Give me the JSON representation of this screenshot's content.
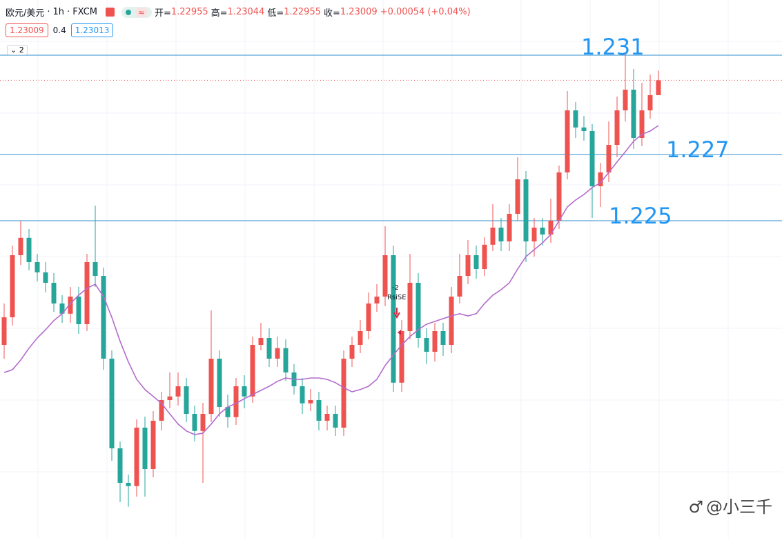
{
  "header": {
    "symbol": "欧元/美元",
    "interval": "1h",
    "source": "FXCM",
    "ohlc": [
      {
        "label": "开=",
        "value": "1.22955"
      },
      {
        "label": "高=",
        "value": "1.23044"
      },
      {
        "label": "低=",
        "value": "1.22955"
      },
      {
        "label": "收=",
        "value": "1.23009"
      }
    ],
    "change": "+0.00054",
    "change_pct": "(+0.04%)",
    "bid": "1.23009",
    "spread": "0.4",
    "ask": "1.23013",
    "collapse": "2"
  },
  "chart_data": {
    "type": "candlestick",
    "ylim": [
      1.2135,
      1.233
    ],
    "up_color": "#ef5350",
    "down_color": "#26a69a",
    "ma_color": "#b36bcc",
    "level_color": "#2e8fcf",
    "open": [
      1.2205,
      1.2215,
      1.22375,
      1.22438,
      1.2235,
      1.22313,
      1.22275,
      1.222,
      1.22163,
      1.22225,
      1.22125,
      1.2235,
      1.223,
      1.22,
      1.21675,
      1.2155,
      1.21538,
      1.2175,
      1.216,
      1.21775,
      1.2185,
      1.21863,
      1.219,
      1.218,
      1.21738,
      1.218,
      1.22,
      1.21825,
      1.21788,
      1.219,
      1.21863,
      1.2205,
      1.22075,
      1.22,
      1.22038,
      1.2195,
      1.219,
      1.21838,
      1.2185,
      1.21775,
      1.218,
      1.2175,
      1.22,
      1.2205,
      1.221,
      1.222,
      1.22225,
      1.22375,
      1.21913,
      1.221,
      1.22275,
      1.22075,
      1.22025,
      1.221,
      1.2205,
      1.22225,
      1.223,
      1.22375,
      1.22325,
      1.22413,
      1.22475,
      1.22425,
      1.22525,
      1.2265,
      1.22425,
      1.22475,
      1.2245,
      1.225,
      1.22675,
      1.229,
      1.22838,
      1.22825,
      1.22625,
      1.22675,
      1.22775,
      1.229,
      1.22975,
      1.228,
      1.229,
      1.22955
    ],
    "high": [
      1.222,
      1.2241,
      1.225,
      1.2247,
      1.2238,
      1.2235,
      1.2231,
      1.2223,
      1.2226,
      1.2226,
      1.2238,
      1.22555,
      1.2233,
      1.2203,
      1.217,
      1.2158,
      1.2178,
      1.2179,
      1.2181,
      1.2188,
      1.2195,
      1.2195,
      1.2193,
      1.2183,
      1.2184,
      1.22175,
      1.2203,
      1.2187,
      1.2193,
      1.2194,
      1.2208,
      1.2213,
      1.2211,
      1.2208,
      1.2207,
      1.2198,
      1.2193,
      1.2189,
      1.2188,
      1.2183,
      1.2183,
      1.2203,
      1.2208,
      1.2214,
      1.2224,
      1.2227,
      1.2248,
      1.2241,
      1.2214,
      1.2238,
      1.2231,
      1.2211,
      1.2213,
      1.2213,
      1.2226,
      1.2238,
      1.2243,
      1.2241,
      1.2244,
      1.2256,
      1.2251,
      1.2256,
      1.2273,
      1.2268,
      1.2251,
      1.2251,
      1.2258,
      1.227,
      1.2297,
      1.2293,
      1.2288,
      1.2285,
      1.2271,
      1.2286,
      1.2295,
      1.2311,
      1.2305,
      1.23,
      1.2303,
      1.23044
    ],
    "low": [
      1.22,
      1.2212,
      1.2234,
      1.2232,
      1.2228,
      1.2224,
      1.2217,
      1.2213,
      1.2213,
      1.2209,
      1.221,
      1.2226,
      1.2196,
      1.2163,
      1.2148,
      1.21463,
      1.215,
      1.215,
      1.2157,
      1.2174,
      1.2182,
      1.2183,
      1.2177,
      1.217,
      1.2155,
      1.2177,
      1.2179,
      1.2175,
      1.2176,
      1.2182,
      1.2184,
      1.2203,
      1.2197,
      1.2197,
      1.2192,
      1.2187,
      1.218,
      1.2181,
      1.2174,
      1.2174,
      1.2172,
      1.2172,
      1.2197,
      1.2202,
      1.2207,
      1.2217,
      1.2219,
      1.2188,
      1.2188,
      1.2207,
      1.2204,
      1.2198,
      1.2199,
      1.2201,
      1.2202,
      1.222,
      1.2227,
      1.2229,
      1.223,
      1.2239,
      1.2239,
      1.2239,
      1.225,
      1.2235,
      1.2237,
      1.2241,
      1.2242,
      1.2247,
      1.2265,
      1.228,
      1.2279,
      1.2251,
      1.2255,
      1.2264,
      1.2273,
      1.2286,
      1.2276,
      1.2277,
      1.2287,
      1.22955
    ],
    "close": [
      1.2215,
      1.22375,
      1.22438,
      1.2235,
      1.22313,
      1.22275,
      1.222,
      1.22163,
      1.22225,
      1.22125,
      1.2235,
      1.223,
      1.22,
      1.21675,
      1.2155,
      1.21538,
      1.2175,
      1.216,
      1.21775,
      1.2185,
      1.21863,
      1.219,
      1.218,
      1.21738,
      1.218,
      1.22,
      1.21825,
      1.21788,
      1.219,
      1.21863,
      1.2205,
      1.22075,
      1.22,
      1.22038,
      1.2195,
      1.219,
      1.21838,
      1.2185,
      1.21775,
      1.218,
      1.2175,
      1.22,
      1.2205,
      1.221,
      1.222,
      1.22225,
      1.22375,
      1.21913,
      1.221,
      1.22275,
      1.22075,
      1.22025,
      1.221,
      1.2205,
      1.22225,
      1.223,
      1.22375,
      1.22325,
      1.22413,
      1.22475,
      1.22425,
      1.22525,
      1.2265,
      1.22425,
      1.22475,
      1.2245,
      1.225,
      1.22675,
      1.229,
      1.22838,
      1.22825,
      1.22625,
      1.22675,
      1.22775,
      1.229,
      1.22975,
      1.228,
      1.229,
      1.22955,
      1.23009
    ],
    "ma": [
      1.2195,
      1.2196,
      1.21995,
      1.22038,
      1.22075,
      1.22105,
      1.22138,
      1.22163,
      1.222,
      1.2223,
      1.22255,
      1.2227,
      1.22225,
      1.2215,
      1.22063,
      1.21988,
      1.21925,
      1.21888,
      1.21863,
      1.21838,
      1.218,
      1.21763,
      1.21738,
      1.21725,
      1.2173,
      1.21763,
      1.218,
      1.21825,
      1.21838,
      1.21855,
      1.2187,
      1.21885,
      1.219,
      1.21918,
      1.2193,
      1.21925,
      1.21925,
      1.2193,
      1.2193,
      1.21925,
      1.21913,
      1.21895,
      1.2188,
      1.21888,
      1.219,
      1.21925,
      1.21975,
      1.22013,
      1.2205,
      1.2208,
      1.22105,
      1.22125,
      1.22135,
      1.22145,
      1.22155,
      1.22163,
      1.22155,
      1.22163,
      1.222,
      1.2223,
      1.2225,
      1.22275,
      1.22325,
      1.2237,
      1.22395,
      1.2242,
      1.2245,
      1.225,
      1.2255,
      1.22575,
      1.22595,
      1.2262,
      1.22638,
      1.22675,
      1.22713,
      1.2275,
      1.22788,
      1.22813,
      1.22825,
      1.22845
    ],
    "levels": [
      {
        "value": 1.231,
        "label": "1.231"
      },
      {
        "value": 1.2274,
        "label": "1.227"
      },
      {
        "value": 1.225,
        "label": "1.225"
      }
    ],
    "annotations": [
      "-2",
      "RsiSE"
    ]
  },
  "watermark": "@小三千"
}
